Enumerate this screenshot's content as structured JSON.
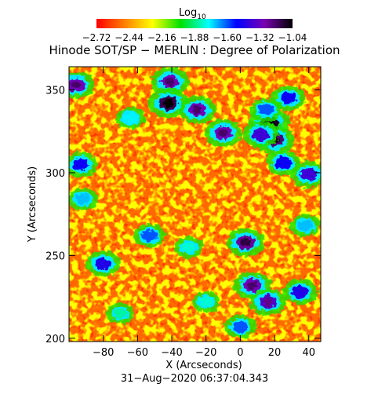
{
  "colorbar": {
    "label": "Log",
    "label_sub": "10",
    "ticks": [
      "−2.72",
      "−2.44",
      "−2.16",
      "−1.88",
      "−1.60",
      "−1.32",
      "−1.04"
    ],
    "range": [
      -2.72,
      -1.04
    ],
    "stops": [
      "#ff0000",
      "#ff7f00",
      "#ffff00",
      "#00e000",
      "#00ffff",
      "#0000ff",
      "#7a00b0",
      "#000000"
    ]
  },
  "chart_data": {
    "type": "heatmap",
    "title": "Hinode SOT/SP − MERLIN : Degree of Polarization",
    "xlabel": "X (Arcseconds)",
    "ylabel": "Y (Arcseconds)",
    "xlim": [
      -100,
      47
    ],
    "ylim": [
      198,
      364
    ],
    "xticks": [
      -80,
      -60,
      -40,
      -20,
      0,
      20,
      40
    ],
    "xtick_labels": [
      "−80",
      "−60",
      "−40",
      "−20",
      "0",
      "20",
      "40"
    ],
    "yticks": [
      200,
      250,
      300,
      350
    ],
    "ytick_labels": [
      "200",
      "250",
      "300",
      "350"
    ],
    "value_scale": "log10",
    "value_range": [
      -2.72,
      -1.04
    ],
    "background_level": -2.6,
    "features": [
      {
        "x": -10,
        "y": 324,
        "level": -1.3
      },
      {
        "x": 3,
        "y": 258,
        "level": -1.25
      },
      {
        "x": -41,
        "y": 355,
        "level": -1.3
      },
      {
        "x": -42,
        "y": 342,
        "level": -1.15
      },
      {
        "x": -25,
        "y": 338,
        "level": -1.3
      },
      {
        "x": 17,
        "y": 330,
        "level": -1.1
      },
      {
        "x": 20,
        "y": 320,
        "level": -1.2
      },
      {
        "x": 12,
        "y": 323,
        "level": -1.4
      },
      {
        "x": 25,
        "y": 306,
        "level": -1.5
      },
      {
        "x": 40,
        "y": 299,
        "level": -1.4
      },
      {
        "x": 28,
        "y": 345,
        "level": -1.5
      },
      {
        "x": 15,
        "y": 338,
        "level": -1.6
      },
      {
        "x": -96,
        "y": 353,
        "level": -1.3
      },
      {
        "x": -93,
        "y": 305,
        "level": -1.5
      },
      {
        "x": -80,
        "y": 245,
        "level": -1.45
      },
      {
        "x": 7,
        "y": 232,
        "level": -1.3
      },
      {
        "x": 35,
        "y": 228,
        "level": -1.45
      },
      {
        "x": 16,
        "y": 222,
        "level": -1.35
      },
      {
        "x": 0,
        "y": 207,
        "level": -1.6
      },
      {
        "x": -53,
        "y": 262,
        "level": -1.6
      },
      {
        "x": 38,
        "y": 268,
        "level": -1.7
      },
      {
        "x": -30,
        "y": 255,
        "level": -1.8
      },
      {
        "x": -92,
        "y": 284,
        "level": -1.7
      },
      {
        "x": -64,
        "y": 333,
        "level": -1.75
      },
      {
        "x": -20,
        "y": 222,
        "level": -1.8
      },
      {
        "x": -70,
        "y": 215,
        "level": -1.85
      }
    ]
  },
  "footer": {
    "timestamp": "31−Aug−2020 06:37:04.343"
  }
}
